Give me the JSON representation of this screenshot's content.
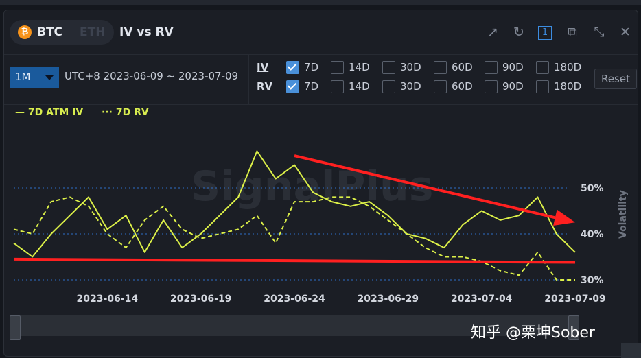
{
  "header": {
    "coin_active": "BTC",
    "coin_inactive": "ETH",
    "coin_symbol": "₿",
    "title": "IV vs RV",
    "badge": "1"
  },
  "controls": {
    "range": "1M",
    "date_range": "UTC+8 2023-06-09 ~ 2023-07-09",
    "iv_label": "IV",
    "rv_label": "RV",
    "options": [
      "7D",
      "14D",
      "30D",
      "60D",
      "90D",
      "180D"
    ],
    "iv_checked": [
      true,
      false,
      false,
      false,
      false,
      false
    ],
    "rv_checked": [
      true,
      false,
      false,
      false,
      false,
      false
    ],
    "reset": "Reset"
  },
  "legend": {
    "iv": "— 7D ATM IV",
    "rv": "··· 7D RV"
  },
  "watermark_text": "SignalPlus",
  "footer_watermark": "知乎 @栗坤Sober",
  "icons": [
    "external-link-icon",
    "refresh-icon",
    "copy-icon",
    "expand-icon",
    "close-icon"
  ],
  "colors": {
    "series": "#dcf048",
    "annotation": "#ff2020",
    "grid": "#2e6fc8",
    "accent": "#1a5a9c"
  },
  "chart_data": {
    "type": "line",
    "xlabel": "",
    "ylabel": "Volatility",
    "x_ticks": [
      "2023-06-14",
      "2023-06-19",
      "2023-06-24",
      "2023-06-29",
      "2023-07-04",
      "2023-07-09"
    ],
    "y_ticks": [
      "30%",
      "40%",
      "50%"
    ],
    "ylim": [
      28,
      60
    ],
    "xlim": [
      "2023-06-09",
      "2023-07-09"
    ],
    "series": [
      {
        "name": "7D ATM IV",
        "style": "solid",
        "x": [
          "2023-06-09",
          "2023-06-10",
          "2023-06-11",
          "2023-06-12",
          "2023-06-13",
          "2023-06-14",
          "2023-06-15",
          "2023-06-16",
          "2023-06-17",
          "2023-06-18",
          "2023-06-19",
          "2023-06-20",
          "2023-06-21",
          "2023-06-22",
          "2023-06-23",
          "2023-06-24",
          "2023-06-25",
          "2023-06-26",
          "2023-06-27",
          "2023-06-28",
          "2023-06-29",
          "2023-06-30",
          "2023-07-01",
          "2023-07-02",
          "2023-07-03",
          "2023-07-04",
          "2023-07-05",
          "2023-07-06",
          "2023-07-07",
          "2023-07-08",
          "2023-07-09"
        ],
        "values": [
          38,
          35,
          40,
          44,
          48,
          41,
          44,
          36,
          43,
          37,
          40,
          44,
          48,
          58,
          52,
          55,
          49,
          47,
          46,
          47,
          44,
          40,
          39,
          37,
          42,
          45,
          43,
          44,
          48,
          40,
          36
        ]
      },
      {
        "name": "7D RV",
        "style": "dotted",
        "x": [
          "2023-06-09",
          "2023-06-10",
          "2023-06-11",
          "2023-06-12",
          "2023-06-13",
          "2023-06-14",
          "2023-06-15",
          "2023-06-16",
          "2023-06-17",
          "2023-06-18",
          "2023-06-19",
          "2023-06-20",
          "2023-06-21",
          "2023-06-22",
          "2023-06-23",
          "2023-06-24",
          "2023-06-25",
          "2023-06-26",
          "2023-06-27",
          "2023-06-28",
          "2023-06-29",
          "2023-06-30",
          "2023-07-01",
          "2023-07-02",
          "2023-07-03",
          "2023-07-04",
          "2023-07-05",
          "2023-07-06",
          "2023-07-07",
          "2023-07-08",
          "2023-07-09"
        ],
        "values": [
          41,
          40,
          47,
          48,
          46,
          40,
          37,
          43,
          46,
          41,
          39,
          40,
          41,
          44,
          38,
          47,
          47,
          48,
          48,
          46,
          43,
          40,
          37,
          35,
          35,
          34,
          32,
          31,
          36,
          30,
          30
        ]
      }
    ],
    "annotations": [
      {
        "type": "arrow",
        "from": [
          "2023-06-24",
          57
        ],
        "to": [
          "2023-07-09",
          42.5
        ]
      },
      {
        "type": "line",
        "from": [
          "2023-06-09",
          34.5
        ],
        "to": [
          "2023-07-09",
          33.8
        ]
      }
    ],
    "grid": "horizontal-dashed",
    "legend_position": "top-left"
  }
}
